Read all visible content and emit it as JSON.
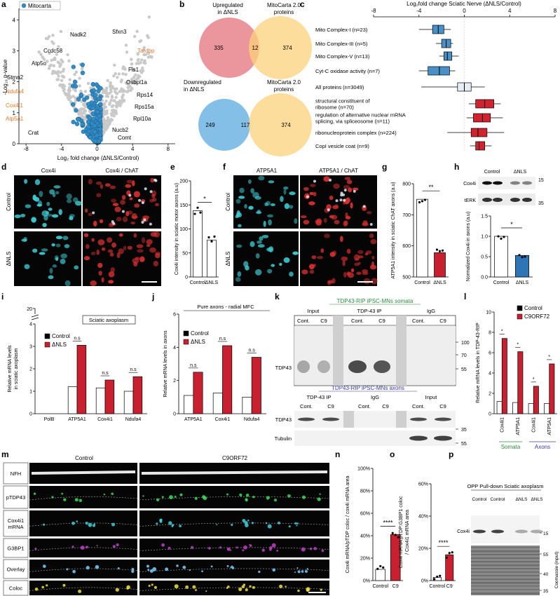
{
  "panels": {
    "a": {
      "letter": "a",
      "legend": "Mitocarta",
      "ylabel": "-Log₁₀ p-value",
      "xlabel": "Log₂ fold change (ΔNLS/Control)",
      "xlim": [
        -8.8,
        8.8
      ],
      "xticks": [
        -8,
        -4,
        0,
        4,
        8
      ],
      "ylim": [
        0,
        4.3
      ],
      "yticks": [
        0,
        1,
        2,
        3,
        4
      ],
      "dot_color": "#2f8cc6",
      "highlight_color": "#e07a2e",
      "genes": [
        {
          "name": "Nadk2",
          "highlighted": false
        },
        {
          "name": "Sfxn3",
          "highlighted": false
        },
        {
          "name": "Ccdc58",
          "highlighted": false
        },
        {
          "name": "Tardbp",
          "highlighted": true
        },
        {
          "name": "Fis1",
          "highlighted": false
        },
        {
          "name": "Atp5o",
          "highlighted": false
        },
        {
          "name": "Osbpl1a",
          "highlighted": false
        },
        {
          "name": "Stmn2",
          "highlighted": false
        },
        {
          "name": "Rps14",
          "highlighted": false
        },
        {
          "name": "Ndufa4",
          "highlighted": true
        },
        {
          "name": "Cox4i1",
          "highlighted": true
        },
        {
          "name": "Rps15a",
          "highlighted": false
        },
        {
          "name": "Atp5a1",
          "highlighted": true
        },
        {
          "name": "Rpl10a",
          "highlighted": false
        },
        {
          "name": "Crat",
          "highlighted": false
        },
        {
          "name": "Nucb2",
          "highlighted": false
        },
        {
          "name": "Comt",
          "highlighted": false
        }
      ]
    },
    "b": {
      "letter": "b",
      "up": {
        "label": [
          "Upregulated",
          "in ΔNLS"
        ],
        "set": [
          "MitoCarta 2.0",
          "proteins"
        ],
        "counts": [
          335,
          12,
          374
        ]
      },
      "down": {
        "label": [
          "Downregulated",
          "in ΔNLS"
        ],
        "set": [
          "MitoCarta 2.0",
          "proteins"
        ],
        "counts": [
          249,
          117,
          374
        ]
      }
    },
    "c": {
      "letter": "c",
      "title": "Log₂fold change Sciatic Nerve (ΔNLS/Control)",
      "xlim": [
        -8,
        8
      ],
      "xticks": [
        -8,
        -4,
        0,
        4,
        8
      ],
      "rows": [
        {
          "label": [
            "Mito Complex-I (n=23)"
          ],
          "whisker": [
            -4,
            -1.2
          ],
          "box": [
            -2.8,
            -1.8
          ],
          "median": -2.3,
          "color": "#4a90c8"
        },
        {
          "label": [
            "Mito Complex-III (n=5)"
          ],
          "whisker": [
            -2.5,
            -1.0
          ],
          "box": [
            -2.0,
            -1.2
          ],
          "median": -1.6,
          "color": "#4a90c8"
        },
        {
          "label": [
            "Mito Complex-V (n=13)"
          ],
          "whisker": [
            -2.2,
            -0.5
          ],
          "box": [
            -1.8,
            -1.1
          ],
          "median": -1.5,
          "color": "#4a90c8"
        },
        {
          "label": [
            "Cyt-C oxidase activity (n=7)"
          ],
          "whisker": [
            -4,
            -0.8
          ],
          "box": [
            -3.2,
            -1.3
          ],
          "median": -2.2,
          "color": "#4a90c8"
        },
        {
          "label": [
            "All proteins (n=3049)"
          ],
          "whisker": [
            -3.8,
            1.8
          ],
          "box": [
            -0.6,
            0.6
          ],
          "median": 0,
          "color": "#e6ecf4"
        },
        {
          "label": [
            "structural constituent of",
            "ribosome (n=70)"
          ],
          "whisker": [
            0.4,
            3.2
          ],
          "box": [
            1.0,
            2.6
          ],
          "median": 1.8,
          "color": "#d0232f"
        },
        {
          "label": [
            "regulation of alternative nuclear mRNA",
            "splicing, via spliceosome (n=11)"
          ],
          "whisker": [
            0.2,
            3.4
          ],
          "box": [
            0.8,
            2.3
          ],
          "median": 1.6,
          "color": "#d0232f"
        },
        {
          "label": [
            "ribonucleoprotein complex (n=224)"
          ],
          "whisker": [
            -1.5,
            3.5
          ],
          "box": [
            0.6,
            2.0
          ],
          "median": 1.2,
          "color": "#d0232f"
        },
        {
          "label": [
            "CopI vesicle coat (n=9)"
          ],
          "whisker": [
            0.5,
            2.4
          ],
          "box": [
            1.0,
            1.8
          ],
          "median": 1.3,
          "color": "#d0232f"
        }
      ]
    },
    "d": {
      "letter": "d",
      "columns": [
        "Cox4i",
        "Cox4i / ChAT"
      ],
      "rows": [
        "Control",
        "ΔNLS"
      ]
    },
    "e": {
      "letter": "e",
      "ylabel": "Cox4i intensity in sciatic motor axons (a.u)",
      "ylim": [
        0,
        200
      ],
      "yticks": [
        0,
        50,
        100,
        150,
        200
      ],
      "categories": [
        "Control",
        "ΔNLS"
      ],
      "values": [
        138,
        77
      ],
      "colors": [
        "#ffffff",
        "#ffffff"
      ],
      "sig": "*"
    },
    "f": {
      "letter": "f",
      "columns": [
        "ATP5A1",
        "ATP5A1 / ChAT"
      ],
      "rows": [
        "Control",
        "ΔNLS"
      ]
    },
    "g": {
      "letter": "g",
      "ylabel": "ATP5A1 intensity in sciatic  ChAT axons (a.u)",
      "ylim": [
        500,
        800
      ],
      "yticks": [
        500,
        600,
        700,
        800
      ],
      "categories": [
        "Control",
        "ΔNLS"
      ],
      "values": [
        750,
        578
      ],
      "colors": [
        "#ffffff",
        "#c8202f"
      ],
      "sig": "**"
    },
    "h": {
      "letter": "h",
      "blot": {
        "lanes": [
          "Control",
          "ΔNLS"
        ],
        "bands": [
          "Cox4i",
          "tERK"
        ],
        "markers": [
          15,
          35
        ]
      },
      "ylabel": "Normalized Cox4i in axons (a.u)",
      "ylim": [
        0,
        1.5
      ],
      "yticks": [
        {
          "value": 0,
          "label": "0.0"
        },
        0.5,
        {
          "value": 1,
          "label": "1.0"
        },
        1.5
      ],
      "categories": [
        "Control",
        "ΔNLS"
      ],
      "values": [
        1.0,
        0.53
      ],
      "colors": [
        "#ffffff",
        "#2e75b6"
      ],
      "sig": "*"
    },
    "i": {
      "letter": "i",
      "ylabel": [
        "Relative mRNA levels",
        "in sciatic axoplasm"
      ],
      "ylim": [
        0,
        4
      ],
      "yticks": [
        0,
        1,
        2,
        3,
        4
      ],
      "break_label": "20",
      "box_title": "Sciatic axoplasm",
      "categories": [
        "PolB",
        "ATP5A1",
        "Cox4i1",
        "Ndufa4"
      ],
      "series": [
        {
          "name": "Control",
          "color": "#ffffff",
          "values": [
            null,
            1.2,
            1.15,
            1.0
          ]
        },
        {
          "name": "ΔNLS",
          "color": "#c8202f",
          "values": [
            null,
            3.05,
            1.5,
            1.65
          ]
        }
      ],
      "sig": [
        null,
        "n.s",
        "n.s",
        "n.s"
      ]
    },
    "j": {
      "letter": "j",
      "ylabel": "Relative mRNA levels in axons",
      "ylim": [
        0,
        6
      ],
      "yticks": [
        0,
        2,
        4,
        6
      ],
      "box_title": "Pure axons - radial MFC",
      "categories": [
        "ATP5A1",
        "Cox4i1",
        "Ndufa4"
      ],
      "series": [
        {
          "name": "Control",
          "color": "#ffffff",
          "values": [
            1.1,
            1.25,
            1.0
          ]
        },
        {
          "name": "ΔNLS",
          "color": "#c8202f",
          "values": [
            2.5,
            4.1,
            3.4
          ]
        }
      ],
      "sig": [
        "n.s",
        "n.s",
        "n.s"
      ]
    },
    "k": {
      "letter": "k",
      "somata": {
        "title": "TDP43-RIP iPSC-MNs somata",
        "lanes": [
          "Input",
          "TDP-43 IP",
          "IgG"
        ],
        "sub": [
          "Cont.",
          "C9",
          "Cont.",
          "C9",
          "Cont.",
          "C9"
        ],
        "markers": [
          100,
          70,
          55
        ],
        "bands": [
          "TDP43"
        ]
      },
      "axons": {
        "title": "TDP43-RIP iPSC-MNs axons",
        "lanes": [
          "TDP-43 IP",
          "IgG",
          "Input"
        ],
        "sub": [
          "Cont.",
          "C9",
          "Cont.",
          "C9",
          "Cont.",
          "C9"
        ],
        "markers": [
          35,
          55
        ],
        "bands": [
          "TDP43",
          "Tubulin"
        ]
      }
    },
    "l": {
      "letter": "l",
      "ylabel": "Relative mRNA levels in TDP-43-RIP",
      "ylim": [
        0,
        10
      ],
      "yticks": [
        0,
        2,
        4,
        6,
        8,
        10
      ],
      "categories": [
        "Cox4i1",
        "ATP5A1",
        "Cox4i1",
        "ATP5A1"
      ],
      "series": [
        {
          "name": "Control",
          "color": "#ffffff",
          "values": [
            1.2,
            1.1,
            1.0,
            1.0
          ]
        },
        {
          "name": "C9ORF72",
          "color": "#c8202f",
          "values": [
            7.4,
            6.1,
            2.7,
            4.9
          ]
        }
      ],
      "sig": [
        "*",
        "*",
        "*",
        "*"
      ],
      "groups": [
        {
          "name": "Somata",
          "color": "#2e8b3e"
        },
        {
          "name": "Axons",
          "color": "#3a3aa0"
        }
      ]
    },
    "m": {
      "letter": "m",
      "columns": [
        "Control",
        "C9ORF72"
      ],
      "rows": [
        [
          "NFH"
        ],
        [
          "pTDP43"
        ],
        [
          "Cox4i1",
          "mRNA"
        ],
        [
          "G3BP1"
        ],
        [
          "Overlay"
        ],
        [
          "Coloc"
        ]
      ]
    },
    "n": {
      "letter": "n",
      "ylabel": "Cox4i mRNA/pTDP coloc / cox4i mRNA area",
      "ylim": [
        0,
        100
      ],
      "yticks": [
        {
          "value": 0,
          "label": "0%"
        },
        {
          "value": 20,
          "label": "20%"
        },
        {
          "value": 40,
          "label": "40%"
        },
        {
          "value": 60,
          "label": "60%"
        },
        {
          "value": 80,
          "label": "80%"
        },
        {
          "value": 100,
          "label": "100%"
        }
      ],
      "categories": [
        "Control",
        "C9"
      ],
      "values": [
        10,
        41
      ],
      "colors": [
        "#ffffff",
        "#c8202f"
      ],
      "sig": "****"
    },
    "o": {
      "letter": "o",
      "ylabel": [
        "Cox4i mRNA:pTDP:G3BP1 coloc",
        "/ Cox4i1 mRNA area"
      ],
      "ylim": [
        0,
        60
      ],
      "yticks": [
        {
          "value": 0,
          "label": "0%"
        },
        {
          "value": 20,
          "label": "20%"
        },
        {
          "value": 40,
          "label": "40%"
        },
        {
          "value": 60,
          "label": "60%"
        }
      ],
      "categories": [
        "Control",
        "C9"
      ],
      "values": [
        2,
        16
      ],
      "colors": [
        "#ffffff",
        "#c8202f"
      ],
      "sig": "****"
    },
    "p": {
      "letter": "p",
      "title": "OPP Pull-down Sciatic axoplasm",
      "lanes": [
        "Control",
        "Control",
        "ΔNLS",
        "ΔNLS"
      ],
      "band": "Cox4i",
      "stain": "Coomassie (input)",
      "markers": [
        15,
        55,
        40,
        35
      ]
    }
  }
}
